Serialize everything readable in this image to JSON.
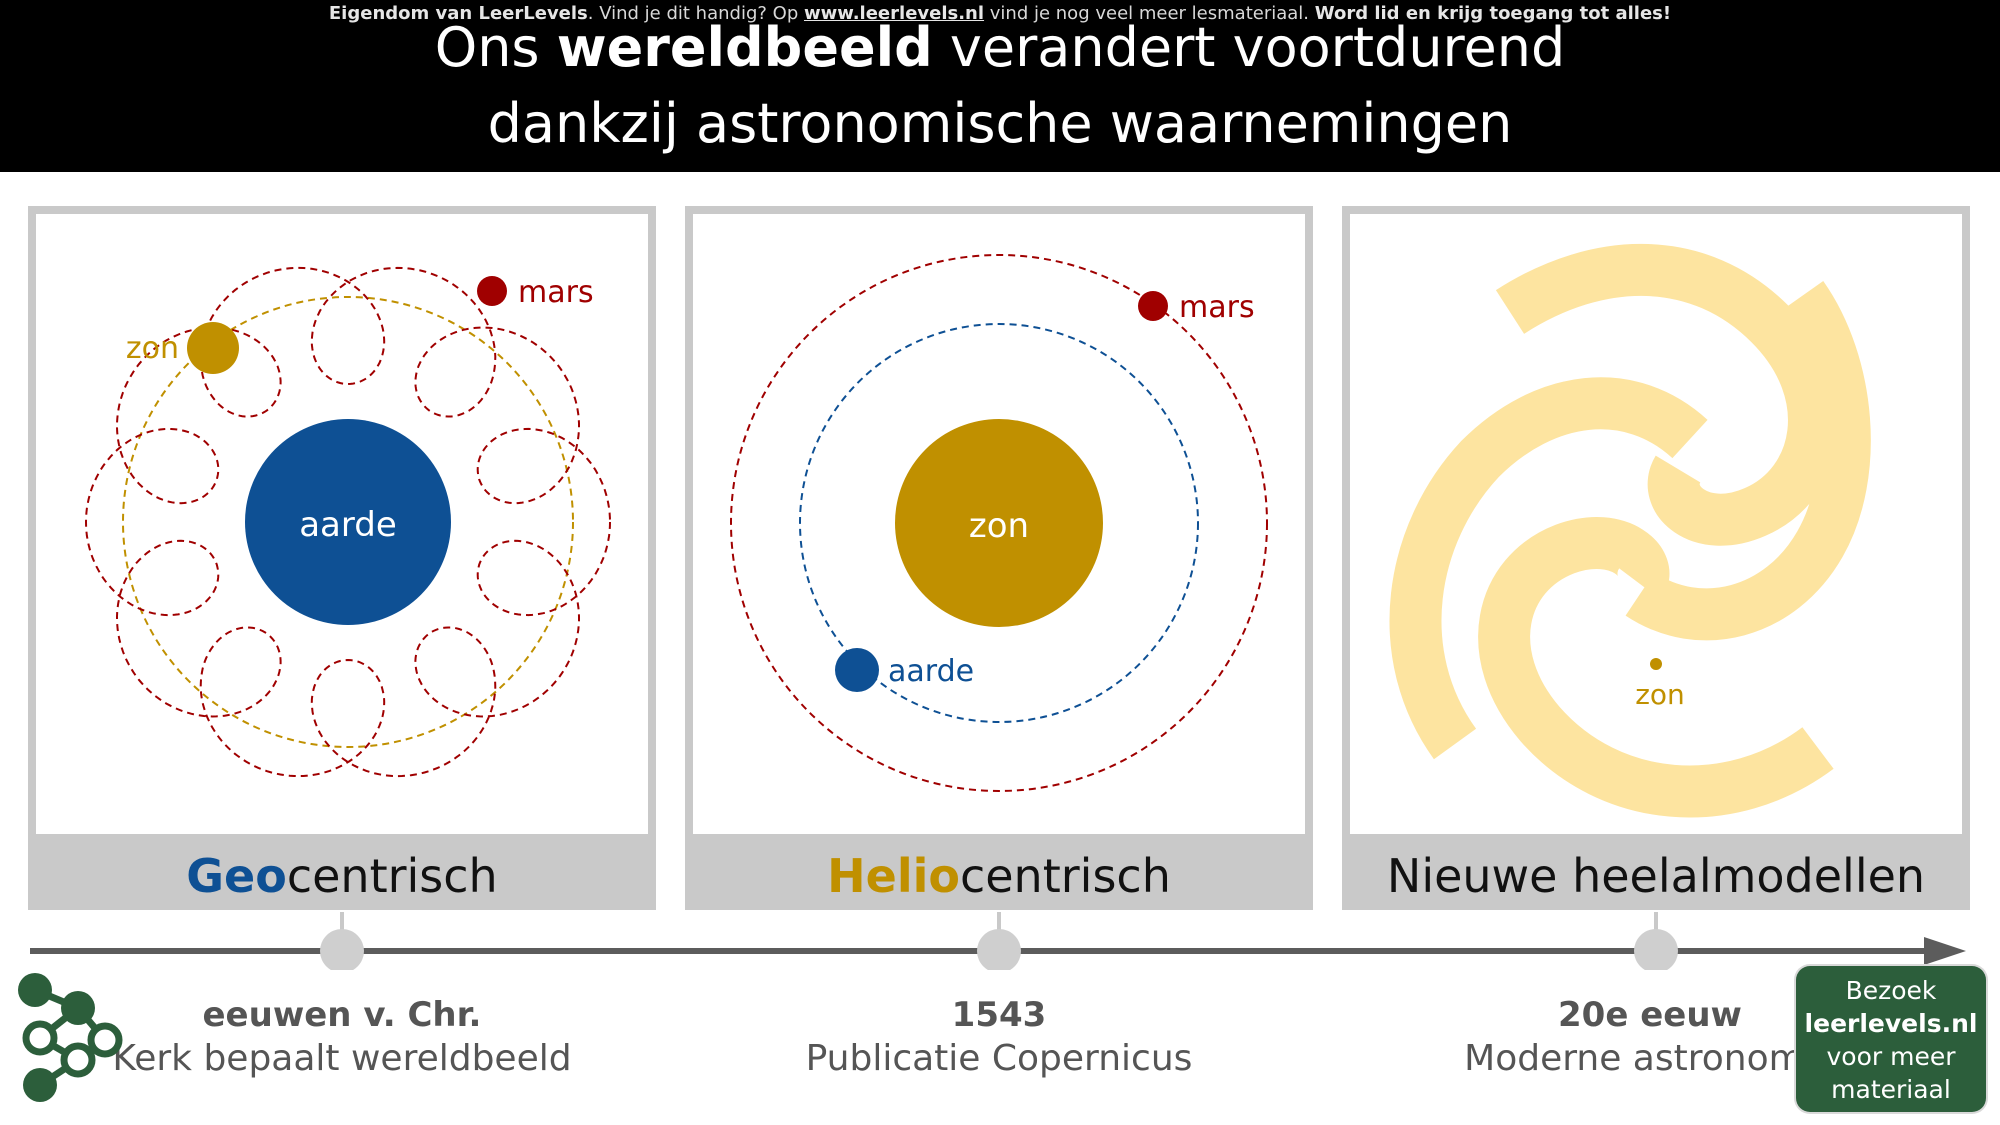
{
  "header": {
    "notice": {
      "owner": "Eigendom van LeerLevels",
      "mid": ". Vind je dit handig? Op ",
      "url": "www.leerlevels.nl",
      "tail": " vind je nog veel meer lesmateriaal. ",
      "cta": "Word lid en krijg toegang tot alles!"
    },
    "title": {
      "pre": "Ons ",
      "bold": "wereldbeeld",
      "post": " verandert voortdurend",
      "line2": "dankzij astronomische waarnemingen"
    }
  },
  "panels": [
    {
      "label_highlight": "Geo",
      "label_rest": "centrisch",
      "labels": {
        "center": "aarde",
        "sun": "zon",
        "planet": "mars"
      }
    },
    {
      "label_highlight": "Helio",
      "label_rest": "centrisch",
      "labels": {
        "center": "zon",
        "earth": "aarde",
        "planet": "mars"
      }
    },
    {
      "label": "Nieuwe heelalmodellen",
      "labels": {
        "sun": "zon"
      }
    }
  ],
  "timeline": [
    {
      "era": "eeuwen v. Chr.",
      "desc": "Kerk bepaalt wereldbeeld"
    },
    {
      "era": "1543",
      "desc": "Publicatie Copernicus"
    },
    {
      "era": "20e eeuw",
      "desc": "Moderne astronomie"
    }
  ],
  "cta": {
    "line1": "Bezoek",
    "line2": "leerlevels.nl",
    "line3": "voor meer",
    "line4": "materiaal"
  },
  "colors": {
    "earth": "#0e5094",
    "sun": "#c09000",
    "mars": "#a00000",
    "galaxy": "#fde4a0",
    "brand": "#2c5e3b"
  }
}
